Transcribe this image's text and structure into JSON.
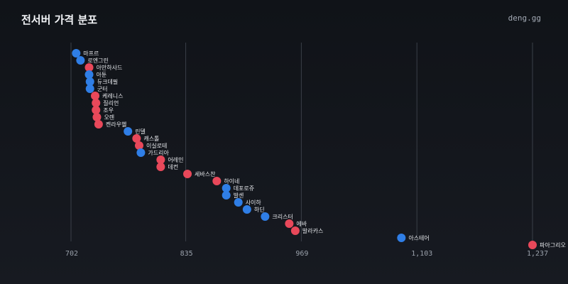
{
  "header": {
    "title": "전서버 가격 분포",
    "brand": "deng.gg"
  },
  "colors": {
    "blue": "#2f7ee6",
    "red": "#e8485a",
    "grid": "#3a3f48"
  },
  "chart_data": {
    "type": "scatter",
    "title": "전서버 가격 분포",
    "xlabel": "",
    "ylabel": "",
    "xlim": [
      702,
      1237
    ],
    "x_ticks": [
      702,
      835,
      969,
      1103,
      1237
    ],
    "x_tick_labels": [
      "702",
      "835",
      "969",
      "1,103",
      "1,237"
    ],
    "grid": true,
    "points": [
      {
        "label": "마프르",
        "value": 708,
        "color": "blue"
      },
      {
        "label": "로엔그린",
        "value": 713,
        "color": "blue"
      },
      {
        "label": "아만하사드",
        "value": 723,
        "color": "red"
      },
      {
        "label": "아툰",
        "value": 723,
        "color": "blue"
      },
      {
        "label": "듀크데필",
        "value": 724,
        "color": "blue"
      },
      {
        "label": "군터",
        "value": 724,
        "color": "blue"
      },
      {
        "label": "케레니스",
        "value": 730,
        "color": "red"
      },
      {
        "label": "질리언",
        "value": 731,
        "color": "red"
      },
      {
        "label": "조우",
        "value": 731,
        "color": "red"
      },
      {
        "label": "오렌",
        "value": 732,
        "color": "red"
      },
      {
        "label": "켄라우헬",
        "value": 734,
        "color": "red"
      },
      {
        "label": "린델",
        "value": 768,
        "color": "blue"
      },
      {
        "label": "캐스톨",
        "value": 778,
        "color": "red"
      },
      {
        "label": "이실로테",
        "value": 781,
        "color": "red"
      },
      {
        "label": "가드리아",
        "value": 783,
        "color": "blue"
      },
      {
        "label": "어레인",
        "value": 806,
        "color": "red"
      },
      {
        "label": "데컨",
        "value": 806,
        "color": "red"
      },
      {
        "label": "세바스찬",
        "value": 837,
        "color": "red"
      },
      {
        "label": "하이네",
        "value": 871,
        "color": "red"
      },
      {
        "label": "데포로쥬",
        "value": 882,
        "color": "blue"
      },
      {
        "label": "발센",
        "value": 882,
        "color": "blue"
      },
      {
        "label": "사이하",
        "value": 896,
        "color": "blue"
      },
      {
        "label": "하딘",
        "value": 906,
        "color": "blue"
      },
      {
        "label": "크리스터",
        "value": 927,
        "color": "blue"
      },
      {
        "label": "에바",
        "value": 955,
        "color": "red"
      },
      {
        "label": "발라카스",
        "value": 962,
        "color": "red"
      },
      {
        "label": "아스테어",
        "value": 1085,
        "color": "blue"
      },
      {
        "label": "파아그리오",
        "value": 1237,
        "color": "red"
      }
    ]
  }
}
